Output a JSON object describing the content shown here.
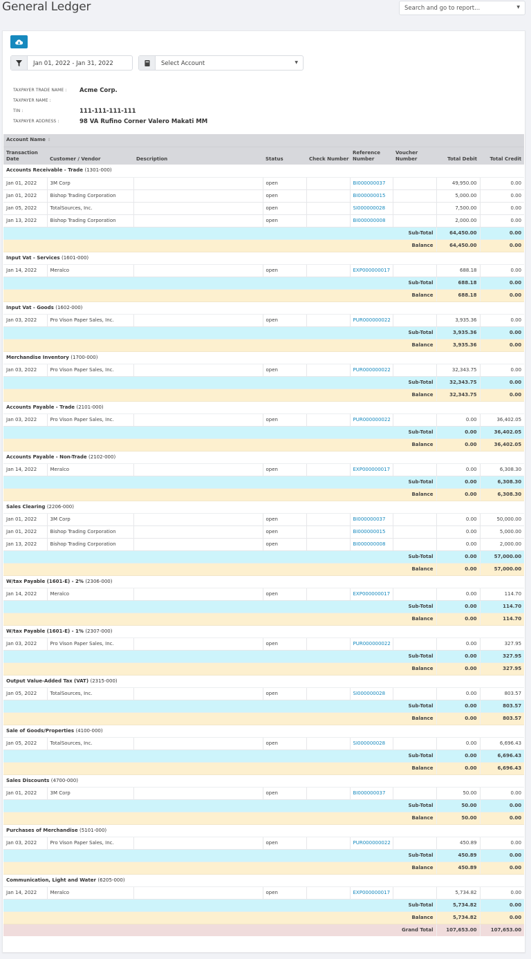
{
  "header": {
    "title": "General Ledger",
    "report_search_placeholder": "Search and go to report..."
  },
  "toolbar": {
    "export_icon": "cloud-download-icon",
    "date_filter_icon": "filter-icon",
    "date_range": "Jan 01, 2022 - Jan 31, 2022",
    "account_icon": "book-icon",
    "account_select": "Select Account"
  },
  "taxpayer": {
    "trade_name_label": "TAXPAYER TRADE NAME :",
    "trade_name": "Acme Corp.",
    "name_label": "TAXPAYER NAME :",
    "name": "",
    "tin_label": "TIN :",
    "tin": "111-111-111-111",
    "address_label": "TAXPAYER ADDRESS :",
    "address": "98 VA Rufino Corner Valero Makati MM"
  },
  "table": {
    "group_header": "Account Name",
    "columns": [
      "Transaction Date",
      "Customer / Vendor",
      "Description",
      "Status",
      "Check Number",
      "Reference Number",
      "Voucher Number",
      "Total Debit",
      "Total Credit"
    ],
    "subtotal_label": "Sub-Total",
    "balance_label": "Balance",
    "grand_total_label": "Grand Total",
    "grand_total_debit": "107,653.00",
    "grand_total_credit": "107,653.00",
    "accounts": [
      {
        "name": "Accounts Receivable - Trade",
        "code": "(1301-000)",
        "rows": [
          {
            "date": "Jan 01, 2022",
            "party": "3M Corp",
            "desc": "",
            "status": "open",
            "check": "",
            "ref": "BI000000037",
            "voucher": "",
            "debit": "49,950.00",
            "credit": "0.00"
          },
          {
            "date": "Jan 01, 2022",
            "party": "Bishop Trading Corporation",
            "desc": "",
            "status": "open",
            "check": "",
            "ref": "BI000000015",
            "voucher": "",
            "debit": "5,000.00",
            "credit": "0.00"
          },
          {
            "date": "Jan 05, 2022",
            "party": "TotalSources, Inc.",
            "desc": "",
            "status": "open",
            "check": "",
            "ref": "SI000000028",
            "voucher": "",
            "debit": "7,500.00",
            "credit": "0.00"
          },
          {
            "date": "Jan 13, 2022",
            "party": "Bishop Trading Corporation",
            "desc": "",
            "status": "open",
            "check": "",
            "ref": "BI000000008",
            "voucher": "",
            "debit": "2,000.00",
            "credit": "0.00"
          }
        ],
        "subtotal_debit": "64,450.00",
        "subtotal_credit": "0.00",
        "balance_debit": "64,450.00",
        "balance_credit": "0.00"
      },
      {
        "name": "Input Vat - Services",
        "code": "(1601-000)",
        "rows": [
          {
            "date": "Jan 14, 2022",
            "party": "Meralco",
            "desc": "",
            "status": "open",
            "check": "",
            "ref": "EXP000000017",
            "voucher": "",
            "debit": "688.18",
            "credit": "0.00"
          }
        ],
        "subtotal_debit": "688.18",
        "subtotal_credit": "0.00",
        "balance_debit": "688.18",
        "balance_credit": "0.00"
      },
      {
        "name": "Input Vat - Goods",
        "code": "(1602-000)",
        "rows": [
          {
            "date": "Jan 03, 2022",
            "party": "Pro Vison Paper Sales, Inc.",
            "desc": "",
            "status": "open",
            "check": "",
            "ref": "PUR000000022",
            "voucher": "",
            "debit": "3,935.36",
            "credit": "0.00"
          }
        ],
        "subtotal_debit": "3,935.36",
        "subtotal_credit": "0.00",
        "balance_debit": "3,935.36",
        "balance_credit": "0.00"
      },
      {
        "name": "Merchandise Inventory",
        "code": "(1700-000)",
        "rows": [
          {
            "date": "Jan 03, 2022",
            "party": "Pro Vison Paper Sales, Inc.",
            "desc": "",
            "status": "open",
            "check": "",
            "ref": "PUR000000022",
            "voucher": "",
            "debit": "32,343.75",
            "credit": "0.00"
          }
        ],
        "subtotal_debit": "32,343.75",
        "subtotal_credit": "0.00",
        "balance_debit": "32,343.75",
        "balance_credit": "0.00"
      },
      {
        "name": "Accounts Payable - Trade",
        "code": "(2101-000)",
        "rows": [
          {
            "date": "Jan 03, 2022",
            "party": "Pro Vison Paper Sales, Inc.",
            "desc": "",
            "status": "open",
            "check": "",
            "ref": "PUR000000022",
            "voucher": "",
            "debit": "0.00",
            "credit": "36,402.05"
          }
        ],
        "subtotal_debit": "0.00",
        "subtotal_credit": "36,402.05",
        "balance_debit": "0.00",
        "balance_credit": "36,402.05"
      },
      {
        "name": "Accounts Payable - Non-Trade",
        "code": "(2102-000)",
        "rows": [
          {
            "date": "Jan 14, 2022",
            "party": "Meralco",
            "desc": "",
            "status": "open",
            "check": "",
            "ref": "EXP000000017",
            "voucher": "",
            "debit": "0.00",
            "credit": "6,308.30"
          }
        ],
        "subtotal_debit": "0.00",
        "subtotal_credit": "6,308.30",
        "balance_debit": "0.00",
        "balance_credit": "6,308.30"
      },
      {
        "name": "Sales Clearing",
        "code": "(2206-000)",
        "rows": [
          {
            "date": "Jan 01, 2022",
            "party": "3M Corp",
            "desc": "",
            "status": "open",
            "check": "",
            "ref": "BI000000037",
            "voucher": "",
            "debit": "0.00",
            "credit": "50,000.00"
          },
          {
            "date": "Jan 01, 2022",
            "party": "Bishop Trading Corporation",
            "desc": "",
            "status": "open",
            "check": "",
            "ref": "BI000000015",
            "voucher": "",
            "debit": "0.00",
            "credit": "5,000.00"
          },
          {
            "date": "Jan 13, 2022",
            "party": "Bishop Trading Corporation",
            "desc": "",
            "status": "open",
            "check": "",
            "ref": "BI000000008",
            "voucher": "",
            "debit": "0.00",
            "credit": "2,000.00"
          }
        ],
        "subtotal_debit": "0.00",
        "subtotal_credit": "57,000.00",
        "balance_debit": "0.00",
        "balance_credit": "57,000.00"
      },
      {
        "name": "W/tax Payable (1601-E) - 2%",
        "code": "(2306-000)",
        "rows": [
          {
            "date": "Jan 14, 2022",
            "party": "Meralco",
            "desc": "",
            "status": "open",
            "check": "",
            "ref": "EXP000000017",
            "voucher": "",
            "debit": "0.00",
            "credit": "114.70"
          }
        ],
        "subtotal_debit": "0.00",
        "subtotal_credit": "114.70",
        "balance_debit": "0.00",
        "balance_credit": "114.70"
      },
      {
        "name": "W/tax Payable (1601-E) - 1%",
        "code": "(2307-000)",
        "rows": [
          {
            "date": "Jan 03, 2022",
            "party": "Pro Vison Paper Sales, Inc.",
            "desc": "",
            "status": "open",
            "check": "",
            "ref": "PUR000000022",
            "voucher": "",
            "debit": "0.00",
            "credit": "327.95"
          }
        ],
        "subtotal_debit": "0.00",
        "subtotal_credit": "327.95",
        "balance_debit": "0.00",
        "balance_credit": "327.95"
      },
      {
        "name": "Output Value-Added Tax (VAT)",
        "code": "(2315-000)",
        "rows": [
          {
            "date": "Jan 05, 2022",
            "party": "TotalSources, Inc.",
            "desc": "",
            "status": "open",
            "check": "",
            "ref": "SI000000028",
            "voucher": "",
            "debit": "0.00",
            "credit": "803.57"
          }
        ],
        "subtotal_debit": "0.00",
        "subtotal_credit": "803.57",
        "balance_debit": "0.00",
        "balance_credit": "803.57"
      },
      {
        "name": "Sale of Goods/Properties",
        "code": "(4100-000)",
        "rows": [
          {
            "date": "Jan 05, 2022",
            "party": "TotalSources, Inc.",
            "desc": "",
            "status": "open",
            "check": "",
            "ref": "SI000000028",
            "voucher": "",
            "debit": "0.00",
            "credit": "6,696.43"
          }
        ],
        "subtotal_debit": "0.00",
        "subtotal_credit": "6,696.43",
        "balance_debit": "0.00",
        "balance_credit": "6,696.43"
      },
      {
        "name": "Sales Discounts",
        "code": "(4700-000)",
        "rows": [
          {
            "date": "Jan 01, 2022",
            "party": "3M Corp",
            "desc": "",
            "status": "open",
            "check": "",
            "ref": "BI000000037",
            "voucher": "",
            "debit": "50.00",
            "credit": "0.00"
          }
        ],
        "subtotal_debit": "50.00",
        "subtotal_credit": "0.00",
        "balance_debit": "50.00",
        "balance_credit": "0.00"
      },
      {
        "name": "Purchases of Merchandise",
        "code": "(5101-000)",
        "rows": [
          {
            "date": "Jan 03, 2022",
            "party": "Pro Vison Paper Sales, Inc.",
            "desc": "",
            "status": "open",
            "check": "",
            "ref": "PUR000000022",
            "voucher": "",
            "debit": "450.89",
            "credit": "0.00"
          }
        ],
        "subtotal_debit": "450.89",
        "subtotal_credit": "0.00",
        "balance_debit": "450.89",
        "balance_credit": "0.00"
      },
      {
        "name": "Communication, Light and Water",
        "code": "(6205-000)",
        "rows": [
          {
            "date": "Jan 14, 2022",
            "party": "Meralco",
            "desc": "",
            "status": "open",
            "check": "",
            "ref": "EXP000000017",
            "voucher": "",
            "debit": "5,734.82",
            "credit": "0.00"
          }
        ],
        "subtotal_debit": "5,734.82",
        "subtotal_credit": "0.00",
        "balance_debit": "5,734.82",
        "balance_credit": "0.00"
      }
    ]
  },
  "colors": {
    "accent": "#1689be",
    "subtotal_bg": "#cdf4fb",
    "balance_bg": "#fdf0cf",
    "grand_total_bg": "#f0dcdc",
    "header_bg": "#d7d8dc"
  }
}
